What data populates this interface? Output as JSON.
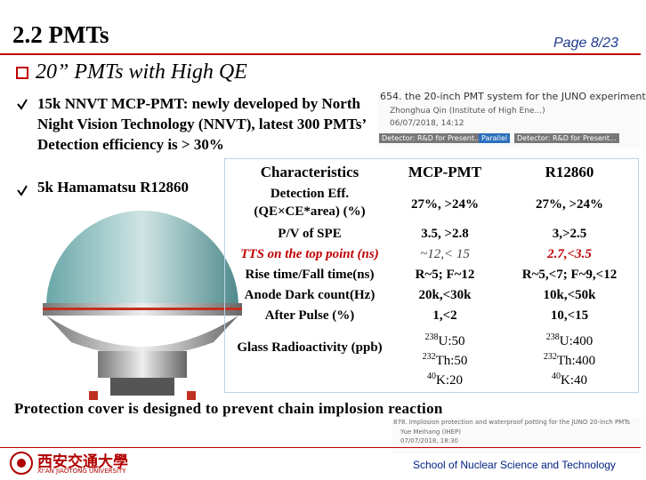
{
  "header": {
    "title": "2.2 PMTs",
    "page": "Page 8/23"
  },
  "heading": "20” PMTs with High QE",
  "bullets": [
    "15k NNVT MCP-PMT: newly developed by North Night Vision Technology (NNVT), latest 300 PMTs’ Detection efficiency is > 30%",
    "5k Hamamatsu R12860"
  ],
  "table": {
    "header": [
      "Characteristics",
      "MCP-PMT",
      "R12860"
    ],
    "rows": [
      [
        "Detection Eff. (QE×CE*area) (%)",
        "27%, >24%",
        "27%, >24%"
      ],
      [
        "P/V of SPE",
        "3.5, >2.8",
        "3,>2.5"
      ],
      [
        "TTS on the top point (ns)",
        "~12,< 15",
        "2.7,<3.5"
      ],
      [
        "Rise time/Fall time(ns)",
        "R~5; F~12",
        "R~5,<7; F~9,<12"
      ],
      [
        "Anode Dark count(Hz)",
        "20k,<30k",
        "10k,<50k"
      ],
      [
        "After Pulse (%)",
        "1,<2",
        "10,<15"
      ]
    ],
    "glass": {
      "label": "Glass Radioactivity (ppb)",
      "mcp": [
        {
          "mass": "238",
          "text": "U:50"
        },
        {
          "mass": "232",
          "text": "Th:50"
        },
        {
          "mass": "40",
          "text": "K:20"
        }
      ],
      "r12860": [
        {
          "mass": "238",
          "text": "U:400"
        },
        {
          "mass": "232",
          "text": "Th:400"
        },
        {
          "mass": "40",
          "text": "K:40"
        }
      ]
    }
  },
  "caption": "Protection cover is designed to prevent chain implosion reaction",
  "inset_top": {
    "title": "654. the 20-inch PMT system for the JUNO experiment",
    "author": "Zhonghua Qin (Institute of High Ene...)",
    "date": "06/07/2018, 14:12",
    "tag1": "Detector: R&D for Present...",
    "tag2": "Parallel",
    "tag3": "Detector: R&D for Present..."
  },
  "inset_bottom": {
    "title": "878. Implosion protection and waterproof potting for the JUNO 20-inch PMTs",
    "author": "Yue Meihang (IHEP)",
    "date": "07/07/2018, 18:30"
  },
  "footer": {
    "university_cn": "西安交通大學",
    "university_en": "XI'AN JIAOTONG UNIVERSITY",
    "school": "School of Nuclear Science and Technology"
  }
}
